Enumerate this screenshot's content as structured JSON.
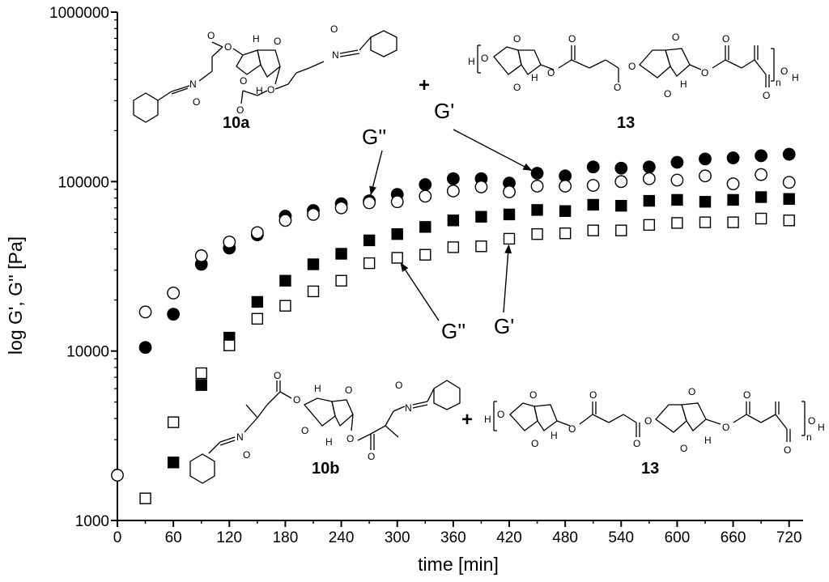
{
  "chart_data": {
    "type": "scatter",
    "xlabel": "time [min]",
    "ylabel": "log G', G'' [Pa]",
    "xlim": [
      0,
      735
    ],
    "ylim": [
      1000,
      1000000
    ],
    "yscale": "log",
    "x_ticks": [
      0,
      60,
      120,
      180,
      240,
      300,
      360,
      420,
      480,
      540,
      600,
      660,
      720
    ],
    "y_ticks": [
      1000,
      10000,
      100000,
      1000000
    ],
    "y_tick_labels": [
      "1000",
      "10000",
      "100000",
      "1000000"
    ],
    "grid": false,
    "series": [
      {
        "marker": "filled-circle",
        "x": [
          30,
          60,
          90,
          120,
          150,
          180,
          210,
          240,
          270,
          300,
          330,
          360,
          390,
          420,
          450,
          480,
          510,
          540,
          570,
          600,
          630,
          660,
          690,
          720
        ],
        "y": [
          10500,
          16500,
          32500,
          40500,
          48500,
          62500,
          67500,
          74000,
          77000,
          84000,
          96000,
          104000,
          104000,
          98000,
          112000,
          108000,
          122000,
          120000,
          122000,
          130000,
          136000,
          138000,
          142000,
          145000
        ]
      },
      {
        "marker": "open-circle",
        "x": [
          0,
          30,
          60,
          90,
          120,
          150,
          180,
          210,
          240,
          270,
          300,
          330,
          360,
          390,
          420,
          450,
          480,
          510,
          540,
          570,
          600,
          630,
          660,
          690,
          720
        ],
        "y": [
          1850,
          17000,
          22000,
          36500,
          44000,
          50000,
          59000,
          64000,
          70000,
          75000,
          76000,
          82000,
          88000,
          93000,
          87000,
          94000,
          94000,
          95000,
          100000,
          104000,
          102000,
          108000,
          97000,
          110000,
          99000
        ]
      },
      {
        "marker": "filled-square",
        "x": [
          60,
          90,
          120,
          150,
          180,
          210,
          240,
          270,
          300,
          330,
          360,
          390,
          420,
          450,
          480,
          510,
          540,
          570,
          600,
          630,
          660,
          690,
          720
        ],
        "y": [
          2200,
          6300,
          12000,
          19500,
          26000,
          32500,
          37500,
          45000,
          49000,
          54000,
          59000,
          62000,
          64000,
          68000,
          67000,
          73000,
          72000,
          77000,
          78000,
          76000,
          78000,
          81000,
          79000
        ]
      },
      {
        "marker": "open-square",
        "x": [
          30,
          60,
          90,
          120,
          150,
          180,
          210,
          240,
          270,
          300,
          330,
          360,
          390,
          420,
          450,
          480,
          510,
          540,
          570,
          600,
          630,
          660,
          690,
          720
        ],
        "y": [
          1350,
          3800,
          7400,
          10800,
          15500,
          18500,
          22500,
          26000,
          33000,
          35500,
          37000,
          41000,
          41500,
          46000,
          49000,
          49500,
          51500,
          51500,
          55500,
          57000,
          57500,
          57500,
          60500,
          59000
        ]
      }
    ],
    "annotations": [
      {
        "text": "G''",
        "arrow_to": {
          "x": 270,
          "y": 77000
        }
      },
      {
        "text": "G'",
        "arrow_to": {
          "x": 450,
          "y": 112000
        }
      },
      {
        "text": "G''",
        "arrow_to": {
          "x": 300,
          "y": 35500
        }
      },
      {
        "text": "G'",
        "arrow_to": {
          "x": 420,
          "y": 46000
        }
      }
    ]
  },
  "figure_labels": {
    "compound_top_left": "10a",
    "compound_top_right": "13",
    "compound_bottom_left": "10b",
    "compound_bottom_right": "13",
    "plus": "+",
    "subscript_n": "n",
    "atoms": {
      "O": "O",
      "H": "H",
      "N": "N",
      "O_minus": "O",
      "N_plus": "N"
    }
  },
  "colors": {
    "marker_stroke": "#000000",
    "background": "#ffffff"
  }
}
